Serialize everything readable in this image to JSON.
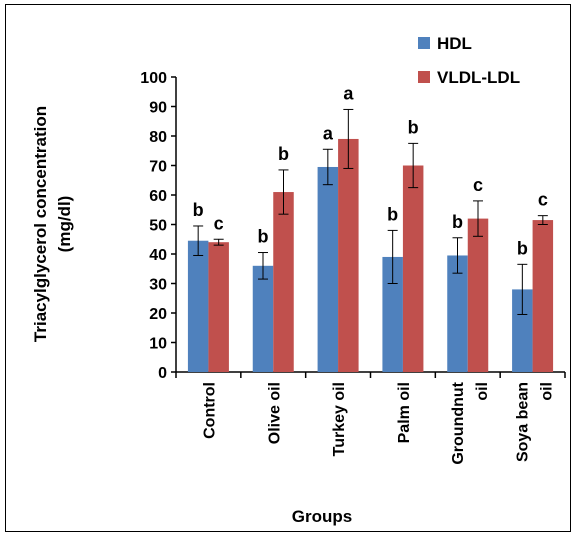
{
  "chart_data": {
    "type": "bar",
    "categories": [
      [
        "Control"
      ],
      [
        "Olive oil"
      ],
      [
        "Turkey oil"
      ],
      [
        "Palm oil"
      ],
      [
        "Groundnut",
        "oil"
      ],
      [
        "Soya bean",
        "oil"
      ]
    ],
    "series": [
      {
        "name": "HDL",
        "color": "#4f81bd",
        "values": [
          44.5,
          36,
          69.5,
          39,
          39.5,
          28
        ],
        "errors": [
          5,
          4.5,
          6,
          9,
          6,
          8.5
        ],
        "letters": [
          "b",
          "b",
          "a",
          "b",
          "b",
          "b"
        ]
      },
      {
        "name": "VLDL-LDL",
        "color": "#c0504d",
        "values": [
          44,
          61,
          79,
          70,
          52,
          51.5
        ],
        "errors": [
          1,
          7.5,
          10,
          7.5,
          6,
          1.5
        ],
        "letters": [
          "c",
          "b",
          "a",
          "b",
          "c",
          "c"
        ]
      }
    ],
    "ylabel": [
      "Triacylglycerol concentration",
      "(mg/dl)"
    ],
    "xlabel": "Groups",
    "ylim": [
      0,
      100
    ],
    "yticks": [
      "0",
      "10",
      "20",
      "30",
      "40",
      "50",
      "60",
      "70",
      "80",
      "90",
      "100"
    ],
    "legend_position": "top-right",
    "grid": false
  }
}
